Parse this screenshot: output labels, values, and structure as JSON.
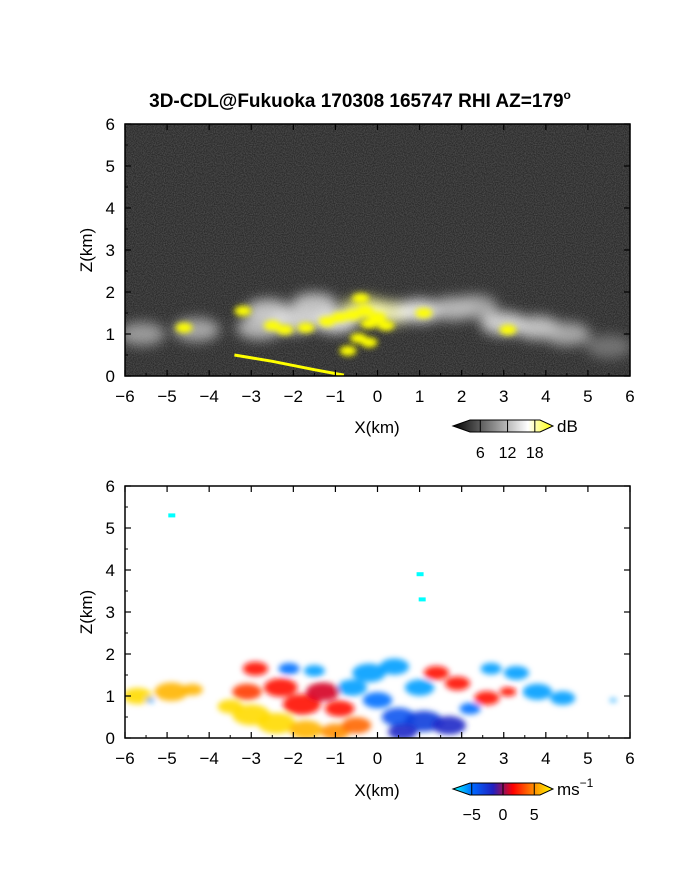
{
  "chart_data": [
    {
      "type": "heatmap",
      "panel": "reflectivity",
      "title": "3D-CDL@Fukuoka 170308 165747 RHI AZ=179",
      "title_degree": "o",
      "xlabel": "X(km)",
      "ylabel": "Z(km)",
      "xlim": [
        -6,
        6
      ],
      "ylim": [
        0,
        6
      ],
      "x_ticks": [
        "-6",
        "-5",
        "-4",
        "-3",
        "-2",
        "-1",
        "0",
        "1",
        "2",
        "3",
        "4",
        "5",
        "6"
      ],
      "y_ticks": [
        "0",
        "1",
        "2",
        "3",
        "4",
        "5",
        "6"
      ],
      "colorbar": {
        "unit": "dB",
        "ticks": [
          "6",
          "12",
          "18"
        ],
        "tick_values": [
          6,
          12,
          18
        ],
        "range": [
          0,
          22
        ],
        "colors": [
          "#000000",
          "#555555",
          "#aaaaaa",
          "#ffffff",
          "#ffff00"
        ]
      },
      "background": "#2b2b2b",
      "echo_blobs": [
        {
          "x": -5.6,
          "z": 1.0,
          "value": 11
        },
        {
          "x": -4.3,
          "z": 1.1,
          "value": 12
        },
        {
          "x": -2.8,
          "z": 1.15,
          "value": 13
        },
        {
          "x": -2.6,
          "z": 1.55,
          "value": 14
        },
        {
          "x": -2.0,
          "z": 1.3,
          "value": 15
        },
        {
          "x": -1.5,
          "z": 1.7,
          "value": 14
        },
        {
          "x": -1.0,
          "z": 1.3,
          "value": 16
        },
        {
          "x": -0.3,
          "z": 1.6,
          "value": 19
        },
        {
          "x": 0.3,
          "z": 1.5,
          "value": 18
        },
        {
          "x": 1.0,
          "z": 1.55,
          "value": 16
        },
        {
          "x": 1.8,
          "z": 1.6,
          "value": 13
        },
        {
          "x": 2.3,
          "z": 1.65,
          "value": 12
        },
        {
          "x": 3.0,
          "z": 1.25,
          "value": 15
        },
        {
          "x": 3.8,
          "z": 1.15,
          "value": 14
        },
        {
          "x": 4.5,
          "z": 1.0,
          "value": 12
        },
        {
          "x": 5.5,
          "z": 0.7,
          "value": 8
        }
      ],
      "strong_echo": [
        {
          "x": -4.6,
          "z": 1.15
        },
        {
          "x": -2.5,
          "z": 1.2
        },
        {
          "x": -2.2,
          "z": 1.1
        },
        {
          "x": -1.7,
          "z": 1.15
        },
        {
          "x": -1.2,
          "z": 1.3
        },
        {
          "x": -0.9,
          "z": 1.4
        },
        {
          "x": -0.6,
          "z": 1.45
        },
        {
          "x": -0.4,
          "z": 1.85
        },
        {
          "x": -0.3,
          "z": 1.55
        },
        {
          "x": -0.2,
          "z": 1.25
        },
        {
          "x": 0.0,
          "z": 1.4
        },
        {
          "x": 0.2,
          "z": 1.2
        },
        {
          "x": -0.45,
          "z": 0.9
        },
        {
          "x": -0.2,
          "z": 0.8
        },
        {
          "x": -0.7,
          "z": 0.6
        },
        {
          "x": -3.2,
          "z": 1.55
        },
        {
          "x": 1.1,
          "z": 1.5
        },
        {
          "x": 3.1,
          "z": 1.1
        }
      ],
      "ground_line": [
        {
          "x": -3.4,
          "z": 0.5
        },
        {
          "x": -2.5,
          "z": 0.35
        },
        {
          "x": -1.5,
          "z": 0.15
        },
        {
          "x": -0.8,
          "z": 0.02
        }
      ]
    },
    {
      "type": "heatmap",
      "panel": "doppler-velocity",
      "xlabel": "X(km)",
      "ylabel": "Z(km)",
      "xlim": [
        -6,
        6
      ],
      "ylim": [
        0,
        6
      ],
      "x_ticks": [
        "-6",
        "-5",
        "-4",
        "-3",
        "-2",
        "-1",
        "0",
        "1",
        "2",
        "3",
        "4",
        "5",
        "6"
      ],
      "y_ticks": [
        "0",
        "1",
        "2",
        "3",
        "4",
        "5",
        "6"
      ],
      "colorbar": {
        "unit": "ms",
        "unit_exponent": "−1",
        "ticks": [
          "−5",
          "0",
          "5"
        ],
        "tick_values": [
          -5,
          0,
          5
        ],
        "range": [
          -8,
          8
        ],
        "colors": [
          "#00ffff",
          "#0066ff",
          "#2020c0",
          "#ff0000",
          "#ff8800",
          "#ffff00"
        ]
      },
      "background": "#ffffff",
      "velocity_blobs": [
        {
          "x": -5.7,
          "z": 1.0,
          "value": 7,
          "r": 0.35
        },
        {
          "x": -4.9,
          "z": 1.1,
          "value": 6,
          "r": 0.4
        },
        {
          "x": -4.4,
          "z": 1.15,
          "value": 6,
          "r": 0.25
        },
        {
          "x": -5.4,
          "z": 0.9,
          "value": -6,
          "r": 0.1
        },
        {
          "x": -3.5,
          "z": 0.75,
          "value": 7,
          "r": 0.3
        },
        {
          "x": -3.0,
          "z": 0.55,
          "value": 7,
          "r": 0.45
        },
        {
          "x": -2.4,
          "z": 0.35,
          "value": 7,
          "r": 0.45
        },
        {
          "x": -1.7,
          "z": 0.2,
          "value": 6,
          "r": 0.4
        },
        {
          "x": -1.0,
          "z": 0.15,
          "value": 5,
          "r": 0.35
        },
        {
          "x": -0.5,
          "z": 0.3,
          "value": 4,
          "r": 0.35
        },
        {
          "x": -3.1,
          "z": 1.1,
          "value": 3,
          "r": 0.35
        },
        {
          "x": -2.9,
          "z": 1.65,
          "value": 2,
          "r": 0.3
        },
        {
          "x": -2.3,
          "z": 1.2,
          "value": 2,
          "r": 0.4
        },
        {
          "x": -1.8,
          "z": 0.8,
          "value": 2,
          "r": 0.45
        },
        {
          "x": -1.3,
          "z": 1.1,
          "value": 1,
          "r": 0.4
        },
        {
          "x": -0.9,
          "z": 0.7,
          "value": 2,
          "r": 0.35
        },
        {
          "x": -2.1,
          "z": 1.65,
          "value": -5,
          "r": 0.25
        },
        {
          "x": -1.5,
          "z": 1.6,
          "value": -6,
          "r": 0.25
        },
        {
          "x": -0.6,
          "z": 1.2,
          "value": -6,
          "r": 0.35
        },
        {
          "x": -0.2,
          "z": 1.55,
          "value": -6,
          "r": 0.4
        },
        {
          "x": 0.4,
          "z": 1.7,
          "value": -6,
          "r": 0.35
        },
        {
          "x": 0.0,
          "z": 0.9,
          "value": -5,
          "r": 0.35
        },
        {
          "x": 0.5,
          "z": 0.5,
          "value": -4,
          "r": 0.4
        },
        {
          "x": 1.1,
          "z": 0.4,
          "value": -3,
          "r": 0.45
        },
        {
          "x": 1.7,
          "z": 0.3,
          "value": -2,
          "r": 0.4
        },
        {
          "x": 0.6,
          "z": 0.15,
          "value": -2,
          "r": 0.35
        },
        {
          "x": 1.0,
          "z": 1.2,
          "value": -6,
          "r": 0.35
        },
        {
          "x": 1.4,
          "z": 1.55,
          "value": 2,
          "r": 0.3
        },
        {
          "x": 1.9,
          "z": 1.3,
          "value": 2,
          "r": 0.3
        },
        {
          "x": 2.6,
          "z": 0.95,
          "value": 2,
          "r": 0.3
        },
        {
          "x": 2.2,
          "z": 0.7,
          "value": -5,
          "r": 0.25
        },
        {
          "x": 2.7,
          "z": 1.65,
          "value": -6,
          "r": 0.25
        },
        {
          "x": 3.3,
          "z": 1.55,
          "value": -6,
          "r": 0.3
        },
        {
          "x": 3.1,
          "z": 1.1,
          "value": 2,
          "r": 0.2
        },
        {
          "x": 3.8,
          "z": 1.1,
          "value": -6,
          "r": 0.35
        },
        {
          "x": 4.4,
          "z": 0.95,
          "value": -6,
          "r": 0.3
        },
        {
          "x": 5.6,
          "z": 0.9,
          "value": -6,
          "r": 0.08
        }
      ],
      "isolated_pixels": [
        {
          "x": -4.9,
          "z": 5.3,
          "value": -8
        },
        {
          "x": 1.0,
          "z": 3.9,
          "value": -8
        },
        {
          "x": 1.05,
          "z": 3.3,
          "value": -8
        }
      ]
    }
  ]
}
